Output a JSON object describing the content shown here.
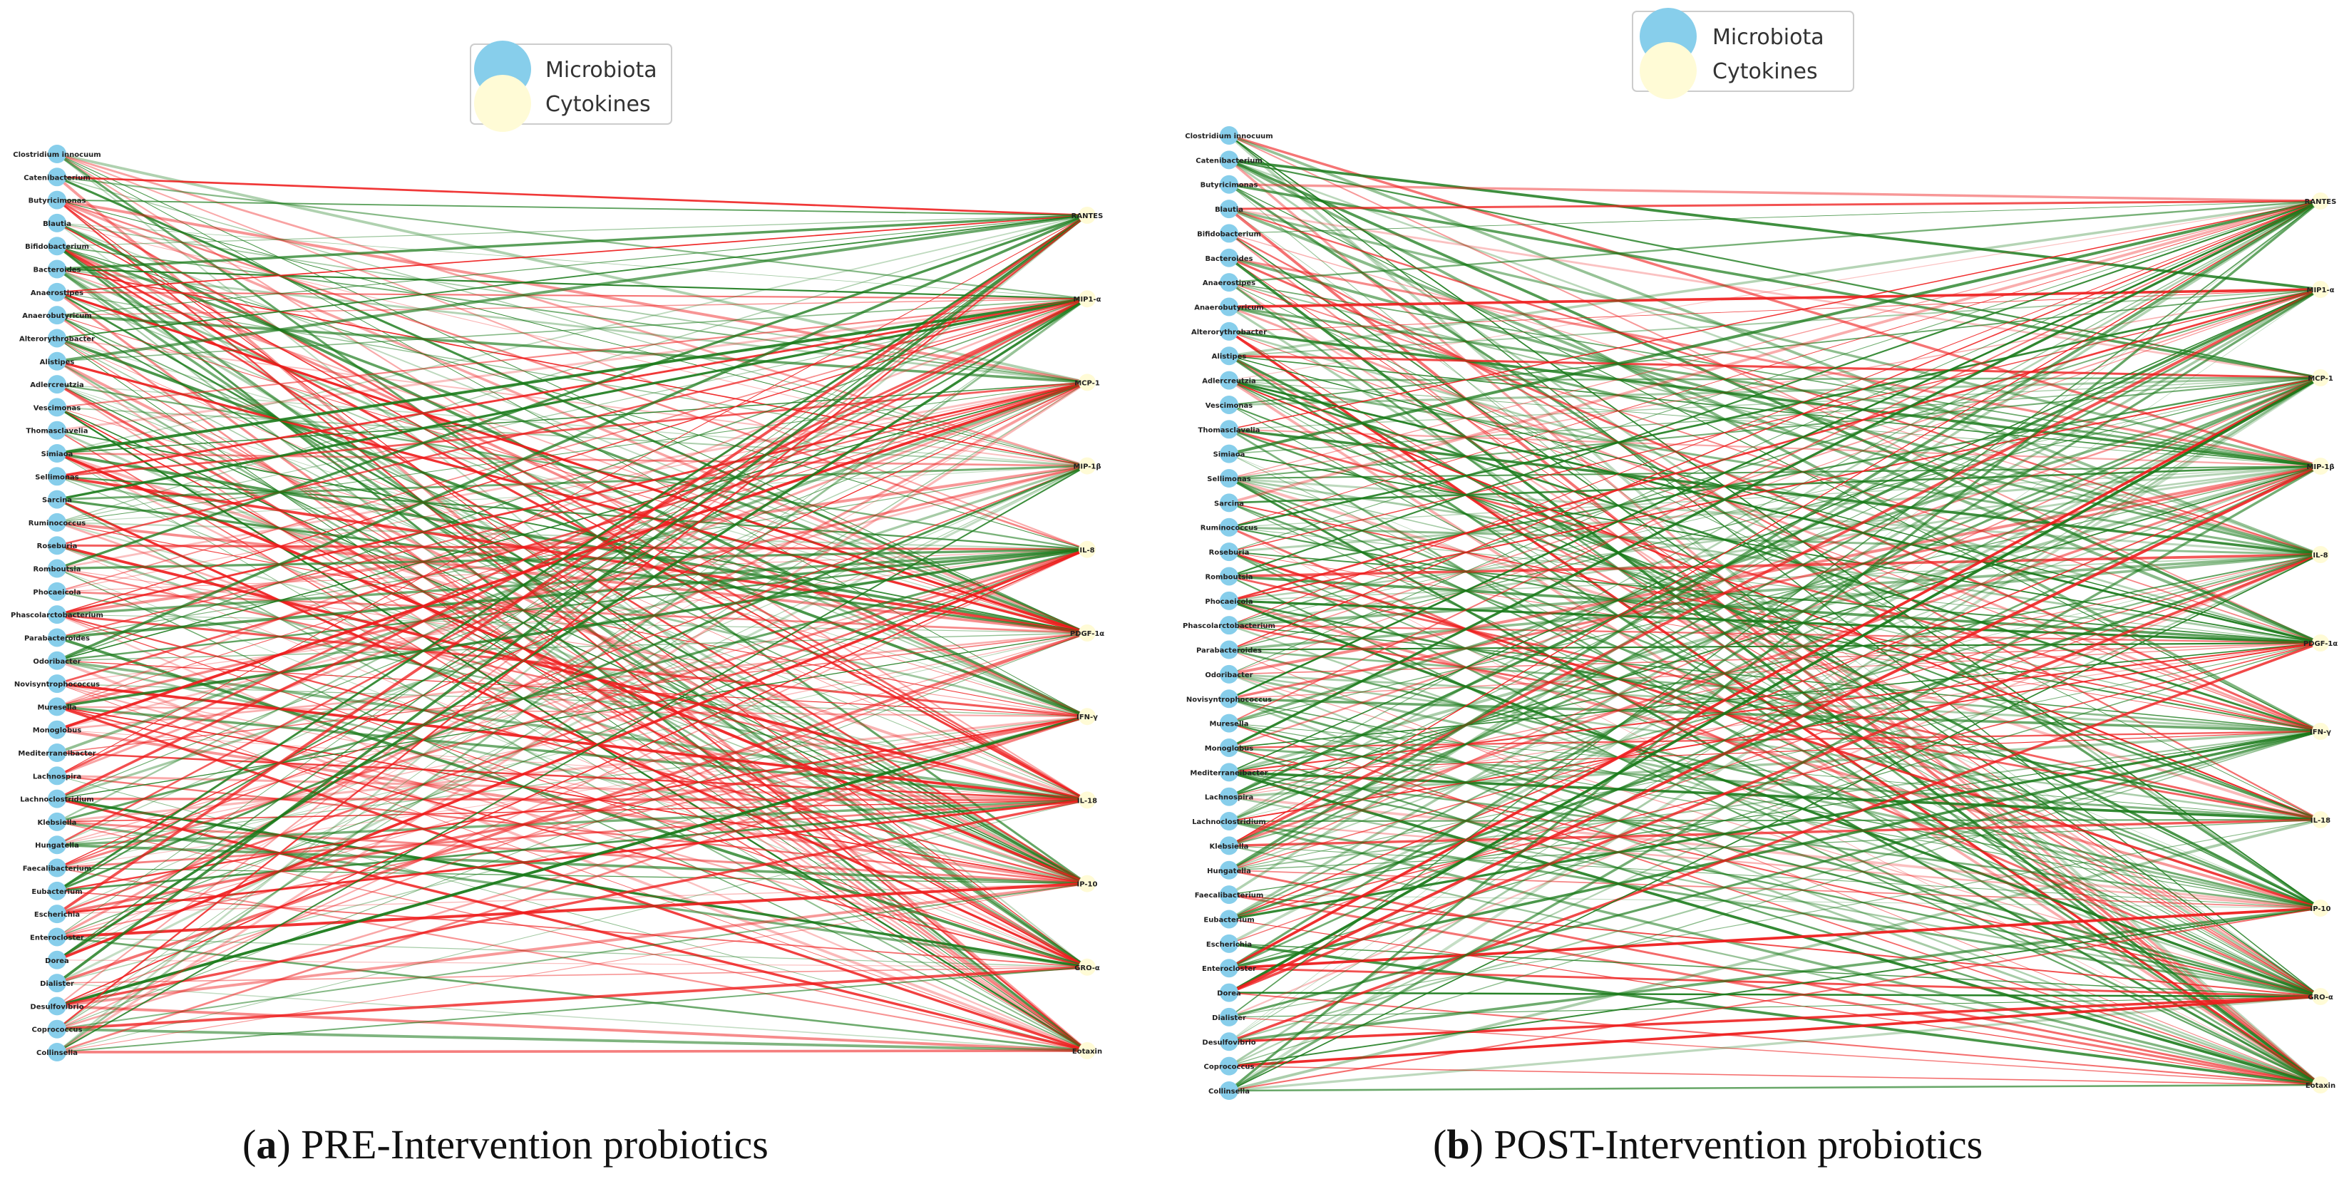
{
  "legend": {
    "microbiota": "Microbiota",
    "cytokines": "Cytokines"
  },
  "colors": {
    "microbiota_node": "#87ceeb",
    "cytokine_node": "#fffbd6",
    "positive_edge": "#1a7a1a",
    "negative_edge": "#ee1c1c",
    "legend_border": "#cccccc"
  },
  "panels": [
    {
      "caption_letter": "a",
      "caption_text": " PRE-Intervention probiotics",
      "microbiota": [
        "Clostridium innocuum",
        "Catenibacterium",
        "Butyricimonas",
        "Blautia",
        "Bifidobacterium",
        "Bacteroides",
        "Anaerostipes",
        "Anaerobutyricum",
        "Alterorythrobacter",
        "Alistipes",
        "Adlercreutzia",
        "Vescimonas",
        "Thomasclavelia",
        "Simiaoa",
        "Sellimonas",
        "Sarcina",
        "Ruminococcus",
        "Roseburia",
        "Romboutsia",
        "Phocaeicola",
        "Phascolarctobacterium",
        "Parabacteroides",
        "Odoribacter",
        "Novisyntrophococcus",
        "Muresella",
        "Monoglobus",
        "Mediterraneibacter",
        "Lachnospira",
        "Lachnoclostridium",
        "Klebsiella",
        "Hungatella",
        "Faecalibacterium",
        "Eubacterium",
        "Escherichia",
        "Enterocloster",
        "Dorea",
        "Dialister",
        "Desulfovibrio",
        "Coprococcus",
        "Collinsella"
      ],
      "cytokines": [
        "RANTES",
        "MIP1-α",
        "MCP-1",
        "MIP-1β",
        "IL-8",
        "PDGF-1α",
        "IFN-γ",
        "IL-18",
        "IP-10",
        "GRO-α",
        "Eotaxin"
      ]
    },
    {
      "caption_letter": "b",
      "caption_text": " POST-Intervention probiotics",
      "microbiota": [
        "Clostridium innocuum",
        "Catenibacterium",
        "Butyricimonas",
        "Blautia",
        "Bifidobacterium",
        "Bacteroides",
        "Anaerostipes",
        "Anaerobutyricum",
        "Alterorythrobacter",
        "Alistipes",
        "Adlercreutzia",
        "Vescimonas",
        "Thomasclavelia",
        "Simiaoa",
        "Sellimonas",
        "Sarcina",
        "Ruminococcus",
        "Roseburia",
        "Romboutsia",
        "Phocaeicola",
        "Phascolarctobacterium",
        "Parabacteroides",
        "Odoribacter",
        "Novisyntrophococcus",
        "Muresella",
        "Monoglobus",
        "Mediterraneibacter",
        "Lachnospira",
        "Lachnoclostridium",
        "Klebsiella",
        "Hungatella",
        "Faecalibacterium",
        "Eubacterium",
        "Escherichia",
        "Enterocloster",
        "Dorea",
        "Dialister",
        "Desulfovibrio",
        "Coprococcus",
        "Collinsella"
      ],
      "cytokines": [
        "RANTES",
        "MIP1-α",
        "MCP-1",
        "MIP-1β",
        "IL-8",
        "PDGF-1α",
        "IFN-γ",
        "IL-18",
        "IP-10",
        "GRO-α",
        "Eotaxin"
      ]
    }
  ]
}
